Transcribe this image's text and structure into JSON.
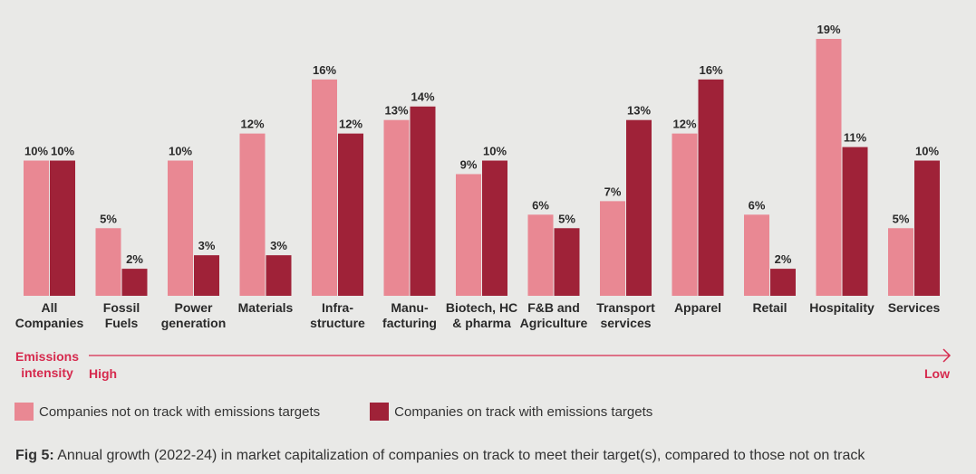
{
  "chart_data": {
    "type": "bar",
    "categories": [
      [
        "All",
        "Companies"
      ],
      [
        "Fossil",
        "Fuels"
      ],
      [
        "Power",
        "generation"
      ],
      [
        "Materials"
      ],
      [
        "Infra-",
        "structure"
      ],
      [
        "Manu-",
        "facturing"
      ],
      [
        "Biotech, HC",
        "& pharma"
      ],
      [
        "F&B and",
        "Agriculture"
      ],
      [
        "Transport",
        "services"
      ],
      [
        "Apparel"
      ],
      [
        "Retail"
      ],
      [
        "Hospitality"
      ],
      [
        "Services"
      ]
    ],
    "series": [
      {
        "name": "Companies not on track with emissions targets",
        "color": "#e98893",
        "values": [
          10,
          5,
          10,
          12,
          16,
          13,
          9,
          6,
          7,
          12,
          6,
          19,
          5
        ],
        "labels": [
          "10%",
          "5%",
          "10%",
          "12%",
          "16%",
          "13%",
          "9%",
          "6%",
          "7%",
          "12%",
          "6%",
          "19%",
          "5%"
        ]
      },
      {
        "name": "Companies on track with emissions targets",
        "color": "#9f2238",
        "values": [
          10,
          2,
          3,
          3,
          12,
          14,
          10,
          5,
          13,
          16,
          2,
          11,
          10
        ],
        "labels": [
          "10%",
          "2%",
          "3%",
          "3%",
          "12%",
          "14%",
          "10%",
          "5%",
          "13%",
          "16%",
          "2%",
          "11%",
          "10%"
        ]
      }
    ],
    "ylim": [
      0,
      19
    ],
    "grid": false,
    "legend_position": "bottom-left",
    "axis_arrow": {
      "label": [
        "Emissions",
        "intensity"
      ],
      "start": "High",
      "end": "Low",
      "color": "#d62a4e"
    }
  },
  "caption": {
    "prefix": "Fig 5:",
    "text": " Annual growth (2022-24) in market capitalization of companies on track to meet their target(s), compared to those not on track"
  }
}
